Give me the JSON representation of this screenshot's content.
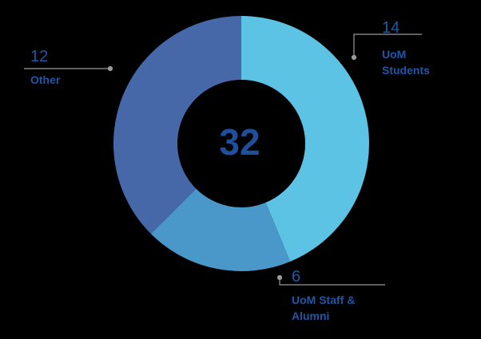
{
  "chart_data": {
    "type": "donut",
    "categories": [
      "UoM Students",
      "UoM Staff & Alumni",
      "Other"
    ],
    "values": [
      14,
      6,
      12
    ],
    "colors": [
      "#5dc3e4",
      "#4a97c9",
      "#4668a9"
    ],
    "total": 32
  }
}
